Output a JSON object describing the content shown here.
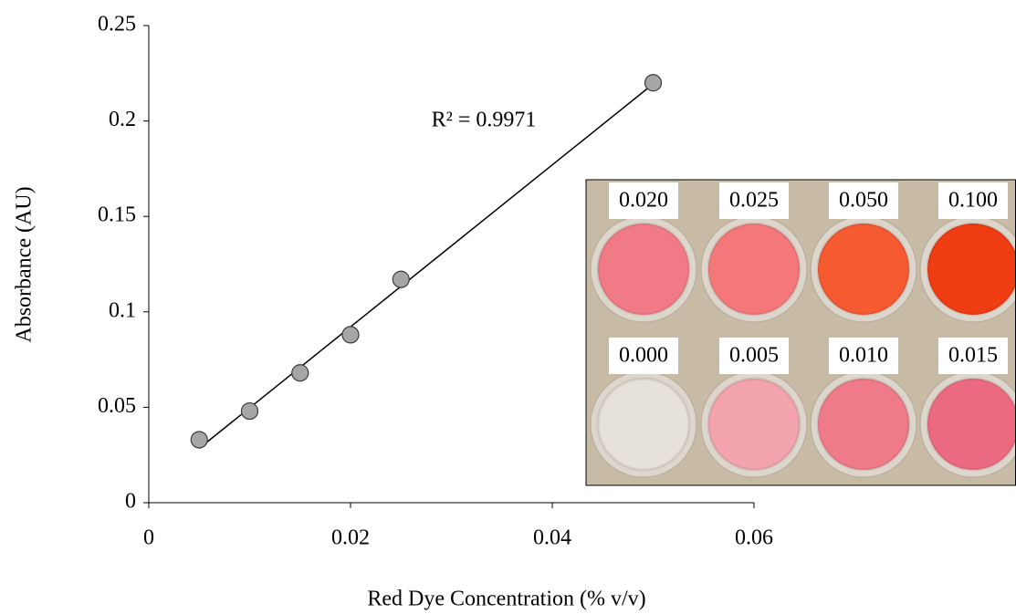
{
  "chart_data": {
    "type": "scatter",
    "x_label": "Red Dye Concentration (% v/v)",
    "y_label": "Absorbance (AU)",
    "x": [
      0.005,
      0.01,
      0.015,
      0.02,
      0.025,
      0.05
    ],
    "series": [
      {
        "values": [
          0.033,
          0.048,
          0.068,
          0.088,
          0.117,
          0.22
        ],
        "color": "#a6a6a6"
      }
    ],
    "xlim": [
      0,
      0.06
    ],
    "xticks": [
      0,
      0.02,
      0.04,
      0.06
    ],
    "ylim": [
      0,
      0.25
    ],
    "yticks": [
      0,
      0.05,
      0.1,
      0.15,
      0.2,
      0.25
    ],
    "trendline": "linear",
    "annotation": "R² = 0.9971",
    "inset": {
      "labels": [
        "0.020",
        "0.025",
        "0.050",
        "0.100",
        "0.000",
        "0.005",
        "0.010",
        "0.015"
      ]
    }
  }
}
